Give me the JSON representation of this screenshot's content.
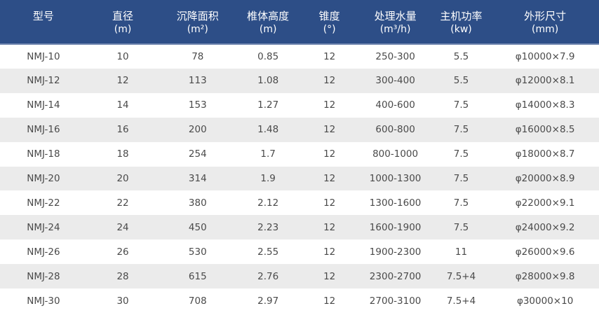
{
  "colors": {
    "header_bg": "#2d4e87",
    "header_border": "#7388b1",
    "header_text": "#ffffff",
    "row_bg": "#ffffff",
    "row_alt_bg": "#ebebeb",
    "cell_text": "#4a4a4a"
  },
  "table": {
    "columns": [
      {
        "title": "型号",
        "unit": ""
      },
      {
        "title": "直径",
        "unit": "(m)"
      },
      {
        "title": "沉降面积",
        "unit": "(m²)"
      },
      {
        "title": "椎体高度",
        "unit": "(m)"
      },
      {
        "title": "锥度",
        "unit": "(°)"
      },
      {
        "title": "处理水量",
        "unit": "(m³/h)"
      },
      {
        "title": "主机功率",
        "unit": "(kw)"
      },
      {
        "title": "外形尺寸",
        "unit": "(mm)"
      }
    ],
    "rows": [
      [
        "NMJ-10",
        "10",
        "78",
        "0.85",
        "12",
        "250-300",
        "5.5",
        "φ10000×7.9"
      ],
      [
        "NMJ-12",
        "12",
        "113",
        "1.08",
        "12",
        "300-400",
        "5.5",
        "φ12000×8.1"
      ],
      [
        "NMJ-14",
        "14",
        "153",
        "1.27",
        "12",
        "400-600",
        "7.5",
        "φ14000×8.3"
      ],
      [
        "NMJ-16",
        "16",
        "200",
        "1.48",
        "12",
        "600-800",
        "7.5",
        "φ16000×8.5"
      ],
      [
        "NMJ-18",
        "18",
        "254",
        "1.7",
        "12",
        "800-1000",
        "7.5",
        "φ18000×8.7"
      ],
      [
        "NMJ-20",
        "20",
        "314",
        "1.9",
        "12",
        "1000-1300",
        "7.5",
        "φ20000×8.9"
      ],
      [
        "NMJ-22",
        "22",
        "380",
        "2.12",
        "12",
        "1300-1600",
        "7.5",
        "φ22000×9.1"
      ],
      [
        "NMJ-24",
        "24",
        "450",
        "2.23",
        "12",
        "1600-1900",
        "7.5",
        "φ24000×9.2"
      ],
      [
        "NMJ-26",
        "26",
        "530",
        "2.55",
        "12",
        "1900-2300",
        "11",
        "φ26000×9.6"
      ],
      [
        "NMJ-28",
        "28",
        "615",
        "2.76",
        "12",
        "2300-2700",
        "7.5+4",
        "φ28000×9.8"
      ],
      [
        "NMJ-30",
        "30",
        "708",
        "2.97",
        "12",
        "2700-3100",
        "7.5+4",
        "φ30000×10"
      ]
    ]
  }
}
